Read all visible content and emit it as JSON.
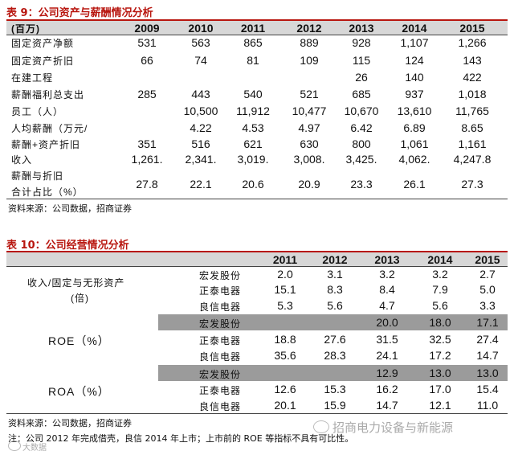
{
  "table9": {
    "title": "表 9：公司资产与薪酬情况分析",
    "unit_label": "(百万)",
    "years": [
      "2009",
      "2010",
      "2011",
      "2012",
      "2013",
      "2014",
      "2015"
    ],
    "rows": [
      {
        "label": "固定资产净额",
        "values": [
          "531",
          "563",
          "865",
          "889",
          "928",
          "1,107",
          "1,266"
        ]
      },
      {
        "label": "固定资产折旧",
        "values": [
          "66",
          "74",
          "81",
          "109",
          "115",
          "124",
          "143"
        ]
      },
      {
        "label": "在建工程",
        "values": [
          "",
          "",
          "",
          "",
          "26",
          "140",
          "422"
        ]
      },
      {
        "label": "薪酬福利总支出",
        "values": [
          "285",
          "443",
          "540",
          "521",
          "685",
          "937",
          "1,018"
        ]
      },
      {
        "label": "员工（人）",
        "values": [
          "",
          "10,500",
          "11,912",
          "10,477",
          "10,670",
          "13,610",
          "11,765"
        ]
      },
      {
        "label": "人均薪酬（万元/",
        "values": [
          "",
          "4.22",
          "4.53",
          "4.97",
          "6.42",
          "6.89",
          "8.65"
        ]
      },
      {
        "label": "薪酬+资产折旧",
        "values": [
          "351",
          "516",
          "621",
          "630",
          "800",
          "1,061",
          "1,161"
        ]
      },
      {
        "label": "收入",
        "values": [
          "1,261.",
          "2,341.",
          "3,019.",
          "3,008.",
          "3,425.",
          "4,062.",
          "4,247.8"
        ]
      },
      {
        "label": "薪酬与折旧",
        "label2": "合计占比（%）",
        "values": [
          "27.8",
          "22.1",
          "20.6",
          "20.9",
          "23.3",
          "26.1",
          "27.3"
        ]
      }
    ],
    "source": "资料来源：公司数据，招商证券"
  },
  "table10": {
    "title": "表 10：公司经营情况分析",
    "years": [
      "2011",
      "2012",
      "2013",
      "2014",
      "2015"
    ],
    "groups": [
      {
        "label": "收入/固定与无形资产",
        "label2": "(倍)",
        "rows": [
          {
            "company": "宏发股份",
            "values": [
              "2.0",
              "3.1",
              "3.2",
              "3.2",
              "2.7"
            ]
          },
          {
            "company": "正泰电器",
            "values": [
              "15.1",
              "8.3",
              "8.4",
              "7.9",
              "5.0"
            ]
          },
          {
            "company": "良信电器",
            "values": [
              "5.3",
              "5.6",
              "4.7",
              "5.6",
              "3.3"
            ]
          }
        ]
      },
      {
        "label": "ROE（%）",
        "rows": [
          {
            "company": "宏发股份",
            "values": [
              "",
              "",
              "20.0",
              "18.0",
              "17.1"
            ]
          },
          {
            "company": "正泰电器",
            "values": [
              "18.8",
              "27.6",
              "31.5",
              "32.5",
              "27.4"
            ]
          },
          {
            "company": "良信电器",
            "values": [
              "35.6",
              "28.3",
              "24.1",
              "17.2",
              "14.7"
            ]
          }
        ]
      },
      {
        "label": "ROA（%）",
        "rows": [
          {
            "company": "宏发股份",
            "values": [
              "",
              "",
              "12.9",
              "13.0",
              "13.0"
            ]
          },
          {
            "company": "正泰电器",
            "values": [
              "12.6",
              "15.3",
              "16.2",
              "17.0",
              "15.4"
            ]
          },
          {
            "company": "良信电器",
            "values": [
              "20.1",
              "15.9",
              "14.7",
              "12.1",
              "11.0"
            ]
          }
        ]
      }
    ],
    "source": "资料来源：公司数据，招商证券",
    "note": "注：公司 2012 年完成借壳，良信 2014 年上市；上市前的 ROE 等指标不具有可比性。"
  },
  "watermark": {
    "brand": "招商电力设备与新能源",
    "corner": "大数据"
  }
}
